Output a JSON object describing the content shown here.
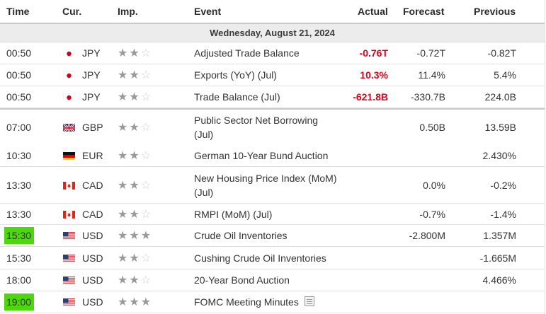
{
  "header": {
    "time": "Time",
    "currency": "Cur.",
    "importance": "Imp.",
    "event": "Event",
    "actual": "Actual",
    "forecast": "Forecast",
    "previous": "Previous"
  },
  "date_label": "Wednesday, August 21, 2024",
  "rows": [
    {
      "time": "00:50",
      "currency": "JPY",
      "flag": "japan-flag-icon",
      "importance": 2,
      "event": "Adjusted Trade Balance",
      "actual": "-0.76T",
      "forecast": "-0.72T",
      "previous": "-0.82T"
    },
    {
      "time": "00:50",
      "currency": "JPY",
      "flag": "japan-flag-icon",
      "importance": 2,
      "event": "Exports (YoY) (Jul)",
      "actual": "10.3%",
      "forecast": "11.4%",
      "previous": "5.4%"
    },
    {
      "time": "00:50",
      "currency": "JPY",
      "flag": "japan-flag-icon",
      "importance": 2,
      "event": "Trade Balance (Jul)",
      "actual": "-621.8B",
      "forecast": "-330.7B",
      "previous": "224.0B"
    },
    {
      "time": "07:00",
      "currency": "GBP",
      "flag": "uk-flag-icon",
      "importance": 2,
      "event_line1": "Public Sector Net Borrowing",
      "event_line2": "(Jul)",
      "actual": "",
      "forecast": "0.50B",
      "previous": "13.59B"
    },
    {
      "time": "10:30",
      "currency": "EUR",
      "flag": "germany-flag-icon",
      "importance": 2,
      "event": "German 10-Year Bund Auction",
      "actual": "",
      "forecast": "",
      "previous": "2.430%"
    },
    {
      "time": "13:30",
      "currency": "CAD",
      "flag": "canada-flag-icon",
      "importance": 2,
      "event_line1": "New Housing Price Index (MoM)",
      "event_line2": "(Jul)",
      "actual": "",
      "forecast": "0.0%",
      "previous": "-0.2%"
    },
    {
      "time": "13:30",
      "currency": "CAD",
      "flag": "canada-flag-icon",
      "importance": 2,
      "event": "RMPI (MoM) (Jul)",
      "actual": "",
      "forecast": "-0.7%",
      "previous": "-1.4%"
    },
    {
      "time": "15:30",
      "currency": "USD",
      "flag": "usa-flag-icon",
      "importance": 3,
      "event": "Crude Oil Inventories",
      "actual": "",
      "forecast": "-2.800M",
      "previous": "1.357M",
      "highlight": true
    },
    {
      "time": "15:30",
      "currency": "USD",
      "flag": "usa-flag-icon",
      "importance": 2,
      "event": "Cushing Crude Oil Inventories",
      "actual": "",
      "forecast": "",
      "previous": "-1.665M"
    },
    {
      "time": "18:00",
      "currency": "USD",
      "flag": "usa-flag-icon",
      "importance": 2,
      "event": "20-Year Bond Auction",
      "actual": "",
      "forecast": "",
      "previous": "4.466%"
    },
    {
      "time": "19:00",
      "currency": "USD",
      "flag": "usa-flag-icon",
      "importance": 3,
      "event": "FOMC Meeting Minutes",
      "actual": "",
      "forecast": "",
      "previous": "",
      "highlight": true,
      "has_note_icon": true
    }
  ],
  "colors": {
    "actual_negative": "#e2001a",
    "highlight": "#4cd80c",
    "date_band": "#ececec"
  }
}
